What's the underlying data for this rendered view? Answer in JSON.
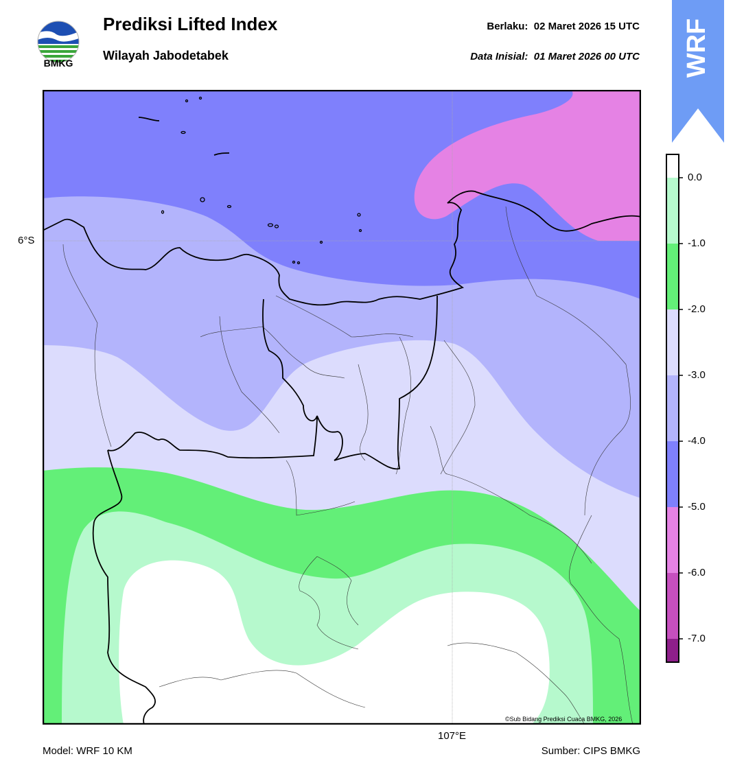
{
  "header": {
    "title": "Prediksi Lifted Index",
    "region": "Wilayah Jabodetabek",
    "valid_label": "Berlaku:",
    "valid_value": "02 Maret 2026 15 UTC",
    "init_label": "Data Inisial:",
    "init_value": "01 Maret 2026 00 UTC"
  },
  "logo": {
    "text": "BMKG",
    "icon": "bmkg-logo-icon"
  },
  "badge": {
    "text": "WRF",
    "color": "#6e9cf5"
  },
  "map": {
    "lat_label": "6°S",
    "lon_label": "107°E",
    "credit": "©Sub Bidang Prediksi Cuaca BMKG, 2026",
    "colors": {
      "lt_minus6": "#c64fbf",
      "minus6_minus5": "#e582e4",
      "minus5_minus4": "#7f80fc",
      "minus4_minus3": "#b3b4fc",
      "minus3_minus2": "#dcdcfd",
      "minus2_minus1": "#63ef78",
      "minus1_0": "#b6f9cd",
      "gt_0": "#ffffff"
    }
  },
  "colorbar": {
    "ticks": [
      "0.0",
      "-1.0",
      "-2.0",
      "-3.0",
      "-4.0",
      "-5.0",
      "-6.0",
      "-7.0"
    ],
    "bands": [
      "#ffffff",
      "#b6f9cd",
      "#63ef78",
      "#dcdcfd",
      "#7f80fc",
      "#e582e4",
      "#c64fbf",
      "#8e1f8a"
    ]
  },
  "footer": {
    "model": "Model: WRF 10 KM",
    "source": "Sumber: CIPS BMKG"
  }
}
